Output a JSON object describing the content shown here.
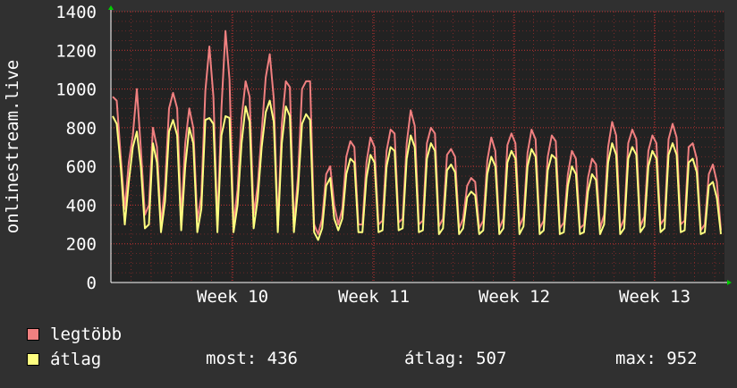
{
  "chart_data": {
    "type": "line",
    "ylabel": "onlinestream.live",
    "ylim": [
      0,
      1400
    ],
    "yticks": [
      0,
      200,
      400,
      600,
      800,
      1000,
      1200,
      1400
    ],
    "xticks": [
      "Week 10",
      "Week 11",
      "Week 12",
      "Week 13"
    ],
    "grid": true,
    "series": [
      {
        "name": "legtöbb",
        "color": "#f08080",
        "values": [
          960,
          940,
          650,
          380,
          620,
          760,
          1000,
          690,
          350,
          400,
          800,
          700,
          300,
          500,
          900,
          980,
          900,
          330,
          720,
          900,
          800,
          320,
          450,
          990,
          1220,
          960,
          300,
          900,
          1300,
          1050,
          300,
          480,
          850,
          1040,
          960,
          350,
          500,
          780,
          1060,
          1180,
          950,
          300,
          820,
          1040,
          1010,
          300,
          550,
          1000,
          1040,
          1040,
          300,
          250,
          330,
          560,
          600,
          400,
          300,
          380,
          650,
          730,
          700,
          300,
          300,
          620,
          750,
          700,
          300,
          320,
          680,
          790,
          770,
          310,
          330,
          720,
          890,
          810,
          300,
          320,
          720,
          800,
          770,
          290,
          330,
          660,
          690,
          650,
          280,
          330,
          500,
          540,
          520,
          280,
          320,
          630,
          750,
          680,
          280,
          330,
          710,
          770,
          720,
          290,
          340,
          670,
          790,
          740,
          280,
          320,
          650,
          760,
          730,
          280,
          310,
          560,
          680,
          640,
          280,
          300,
          540,
          640,
          610,
          280,
          350,
          700,
          830,
          760,
          280,
          330,
          720,
          790,
          740,
          290,
          340,
          680,
          760,
          720,
          300,
          330,
          740,
          820,
          750,
          300,
          320,
          700,
          720,
          640,
          270,
          300,
          560,
          610,
          520,
          270
        ]
      },
      {
        "name": "átlag",
        "color": "#ffff80",
        "values": [
          860,
          820,
          600,
          300,
          520,
          700,
          780,
          600,
          280,
          300,
          720,
          620,
          260,
          420,
          780,
          840,
          760,
          270,
          600,
          800,
          720,
          260,
          380,
          840,
          850,
          820,
          260,
          760,
          860,
          850,
          260,
          400,
          720,
          910,
          830,
          280,
          430,
          700,
          880,
          940,
          830,
          260,
          720,
          910,
          860,
          260,
          480,
          820,
          870,
          840,
          260,
          220,
          280,
          500,
          540,
          330,
          270,
          330,
          560,
          640,
          620,
          260,
          260,
          540,
          660,
          620,
          260,
          270,
          600,
          700,
          680,
          270,
          280,
          640,
          760,
          700,
          260,
          270,
          640,
          720,
          680,
          250,
          280,
          580,
          610,
          570,
          250,
          280,
          440,
          470,
          450,
          250,
          270,
          560,
          650,
          600,
          250,
          280,
          620,
          680,
          640,
          250,
          290,
          600,
          690,
          650,
          250,
          270,
          580,
          660,
          640,
          250,
          260,
          500,
          600,
          560,
          250,
          260,
          470,
          560,
          530,
          250,
          300,
          620,
          720,
          660,
          250,
          280,
          640,
          700,
          660,
          260,
          290,
          600,
          680,
          640,
          260,
          280,
          660,
          720,
          660,
          260,
          270,
          620,
          640,
          570,
          250,
          260,
          500,
          520,
          436,
          250
        ]
      }
    ],
    "legend": "bottom-left"
  },
  "legend": {
    "items": [
      {
        "label": "legtöbb",
        "color": "#f08080"
      },
      {
        "label": "átlag",
        "color": "#ffff80"
      }
    ]
  },
  "stats": {
    "most": "most: 436",
    "atlag": "átlag: 507",
    "max": "max: 952"
  },
  "colors": {
    "background": "#303030",
    "plot_background": "#222222",
    "grid": "#c83232",
    "text": "#ffffff",
    "axis_arrow": "#00cc00"
  }
}
